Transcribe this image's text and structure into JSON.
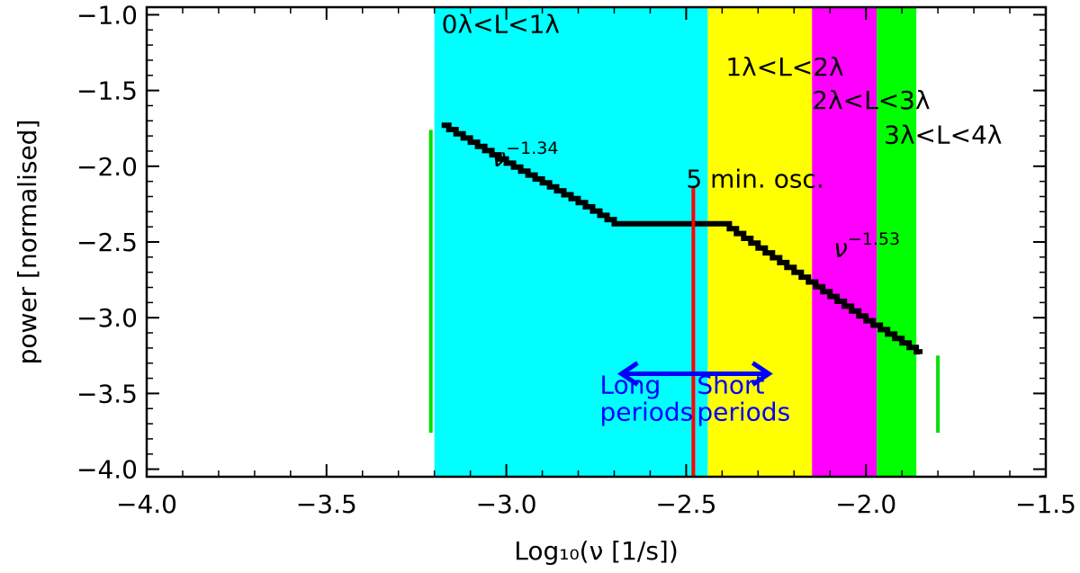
{
  "chart_data": {
    "type": "line",
    "xlabel": "Log₁₀(ν [1/s])",
    "ylabel": "power [normalised]",
    "xlim": [
      -4.0,
      -1.5
    ],
    "ylim": [
      -4.05,
      -0.95
    ],
    "x_ticks": [
      -4.0,
      -3.5,
      -3.0,
      -2.5,
      -2.0,
      -1.5
    ],
    "x_tick_labels": [
      "−4.0",
      "−3.5",
      "−3.0",
      "−2.5",
      "−2.0",
      "−1.5"
    ],
    "y_ticks": [
      -1.0,
      -1.5,
      -2.0,
      -2.5,
      -3.0,
      -3.5,
      -4.0
    ],
    "y_tick_labels": [
      "−1.0",
      "−1.5",
      "−2.0",
      "−2.5",
      "−3.0",
      "−3.5",
      "−4.0"
    ],
    "bands": [
      {
        "x0": -3.2,
        "x1": -2.44,
        "color": "#00ffff",
        "label": "0λ<L<1λ",
        "label_x": -3.18,
        "label_y": -1.12
      },
      {
        "x0": -2.44,
        "x1": -2.15,
        "color": "#ffff00",
        "label": "1λ<L<2λ",
        "label_x": -2.39,
        "label_y": -1.4
      },
      {
        "x0": -2.15,
        "x1": -1.97,
        "color": "#ff00ff",
        "label": "2λ<L<3λ",
        "label_x": -2.15,
        "label_y": -1.62
      },
      {
        "x0": -1.97,
        "x1": -1.86,
        "color": "#00ff00",
        "label": "3λ<L<4λ",
        "label_x": -1.95,
        "label_y": -1.85
      }
    ],
    "series": [
      {
        "color": "#000000",
        "x": [
          -3.18,
          -3.0,
          -2.9,
          -2.8,
          -2.7,
          -2.4,
          -2.2,
          -2.0,
          -1.85
        ],
        "y": [
          -1.73,
          -1.98,
          -2.11,
          -2.24,
          -2.38,
          -2.38,
          -2.7,
          -3.02,
          -3.24
        ]
      }
    ],
    "slope_labels": [
      {
        "base": "ν",
        "exponent": "−1.34",
        "x": -3.04,
        "y": -2.0
      },
      {
        "base": "ν",
        "exponent": "−1.53",
        "x": -2.09,
        "y": -2.6
      }
    ],
    "vertical_markers": [
      {
        "x": -2.48,
        "y_from": -4.05,
        "y_to": -2.13,
        "color": "#ff0000",
        "label": "5 min. osc.",
        "label_x": -2.5,
        "label_y": -2.14
      }
    ],
    "range_markers": [
      {
        "x": -3.21,
        "y_from": -1.76,
        "y_to": -3.76,
        "color": "#00e000"
      },
      {
        "x": -1.8,
        "y_from": -3.25,
        "y_to": -3.76,
        "color": "#00e000"
      }
    ],
    "arrow": {
      "x_from": -2.68,
      "x_to": -2.27,
      "y": -3.37,
      "color": "#0000ff"
    },
    "arrow_labels": [
      {
        "lines": [
          "Long",
          "periods"
        ],
        "x": -2.74,
        "y": -3.5,
        "color": "#0000ff"
      },
      {
        "lines": [
          "Short",
          "periods"
        ],
        "x": -2.47,
        "y": -3.5,
        "color": "#0000ff"
      }
    ]
  }
}
